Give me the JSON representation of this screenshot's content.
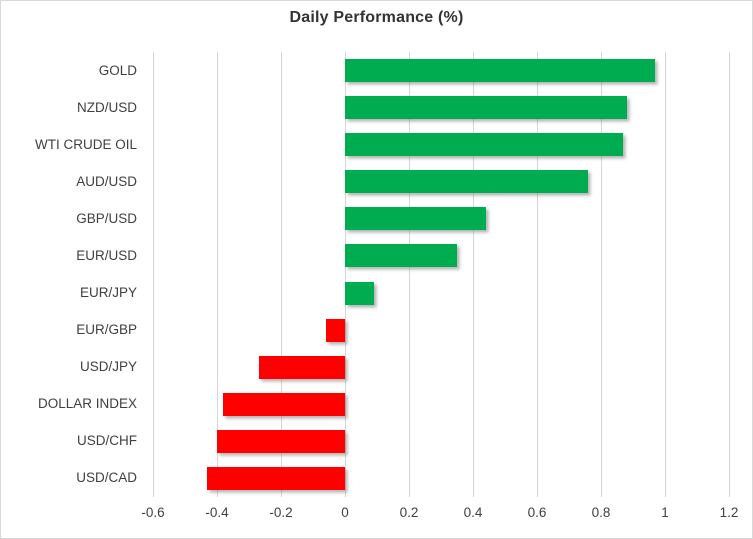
{
  "chart_data": {
    "type": "bar",
    "orientation": "horizontal",
    "title": "Daily Performance (%)",
    "categories": [
      "GOLD",
      "NZD/USD",
      "WTI CRUDE OIL",
      "AUD/USD",
      "GBP/USD",
      "EUR/USD",
      "EUR/JPY",
      "EUR/GBP",
      "USD/JPY",
      "DOLLAR INDEX",
      "USD/CHF",
      "USD/CAD"
    ],
    "values": [
      0.97,
      0.88,
      0.87,
      0.76,
      0.44,
      0.35,
      0.09,
      -0.06,
      -0.27,
      -0.38,
      -0.4,
      -0.43
    ],
    "xlim": [
      -0.6,
      1.2
    ],
    "x_ticks": [
      {
        "value": -0.6,
        "label": "-0.6"
      },
      {
        "value": -0.4,
        "label": "-0.4"
      },
      {
        "value": -0.2,
        "label": "-0.2"
      },
      {
        "value": 0,
        "label": "0"
      },
      {
        "value": 0.2,
        "label": "0.2"
      },
      {
        "value": 0.4,
        "label": "0.4"
      },
      {
        "value": 0.6,
        "label": "0.6"
      },
      {
        "value": 0.8,
        "label": "0.8"
      },
      {
        "value": 1,
        "label": "1"
      },
      {
        "value": 1.2,
        "label": "1.2"
      }
    ],
    "grid": true,
    "legend": false,
    "colors": {
      "positive": "#00AC50",
      "negative": "#FF0000",
      "gridline": "#D6D6D6",
      "axis_text": "#404040",
      "title_text": "#333333",
      "border": "#D9D9D9",
      "background": "#FFFFFF"
    }
  }
}
